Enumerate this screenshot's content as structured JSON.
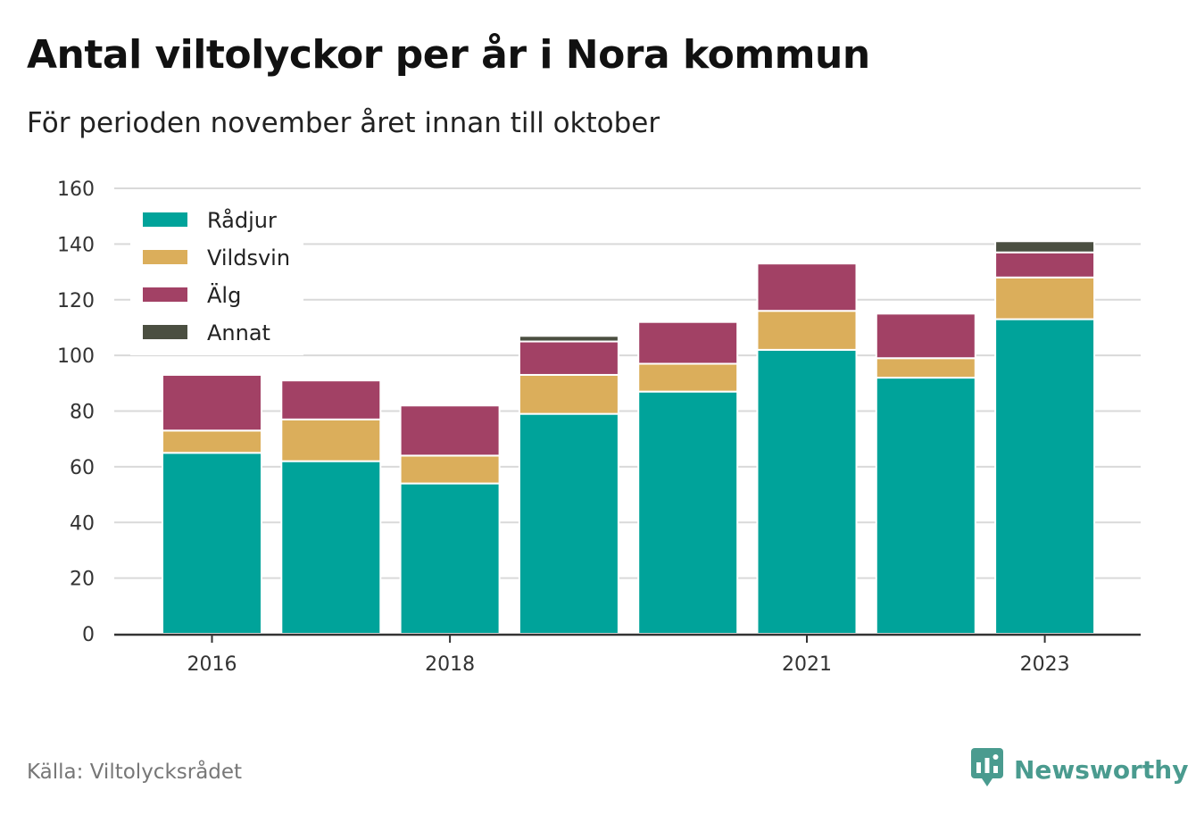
{
  "header": {
    "title": "Antal viltolyckor per år i Nora kommun",
    "subtitle": "För perioden november året innan till oktober"
  },
  "footer": {
    "source": "Källa: Viltolycksrådet",
    "brand": "Newsworthy",
    "brand_icon": "newsworthy-logo-icon"
  },
  "colors": {
    "Rådjur": "#00a39a",
    "Vildsvin": "#dbae5b",
    "Älg": "#a24165",
    "Annat": "#4b4f41",
    "grid": "#d9d9d9",
    "axis": "#333333",
    "brand": "#4a9b8f"
  },
  "chart_data": {
    "type": "bar",
    "stacked": true,
    "categories": [
      "2016",
      "2017",
      "2018",
      "2019",
      "2020",
      "2021",
      "2022",
      "2023"
    ],
    "x_tick_labels": [
      "2016",
      "2018",
      "2021",
      "2023"
    ],
    "series": [
      {
        "name": "Rådjur",
        "values": [
          65,
          62,
          54,
          79,
          87,
          102,
          92,
          113
        ]
      },
      {
        "name": "Vildsvin",
        "values": [
          8,
          15,
          10,
          14,
          10,
          14,
          7,
          15
        ]
      },
      {
        "name": "Älg",
        "values": [
          20,
          14,
          18,
          12,
          15,
          17,
          16,
          9
        ]
      },
      {
        "name": "Annat",
        "values": [
          0,
          0,
          0,
          2,
          0,
          0,
          0,
          4
        ]
      }
    ],
    "ylim": [
      0,
      160
    ],
    "yticks": [
      0,
      20,
      40,
      60,
      80,
      100,
      120,
      140,
      160
    ],
    "grid": true,
    "legend_position": "top-left",
    "xlabel": "",
    "ylabel": ""
  }
}
